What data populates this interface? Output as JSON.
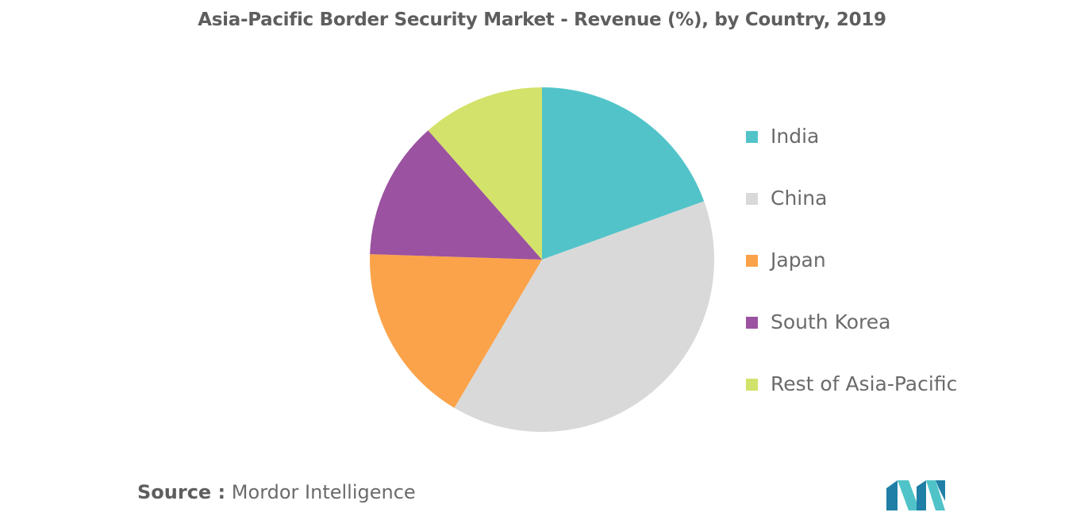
{
  "chart_data": {
    "type": "pie",
    "title": "Asia-Pacific Border Security Market - Revenue (%), by Country, 2019",
    "categories": [
      "India",
      "China",
      "Japan",
      "South Korea",
      "Rest of Asia-Pacific"
    ],
    "values": [
      19.5,
      39,
      17,
      13,
      11.5
    ],
    "colors": [
      "#52c4c9",
      "#d9d9d9",
      "#fba34a",
      "#9b52a0",
      "#d3e26a"
    ],
    "legend_position": "right"
  },
  "source": {
    "prefix": "Source :",
    "text": "Mordor Intelligence"
  },
  "logo": {
    "icon": "mordor-intelligence-logo",
    "colors": [
      "#1f7fa6",
      "#4fc3c8"
    ]
  }
}
